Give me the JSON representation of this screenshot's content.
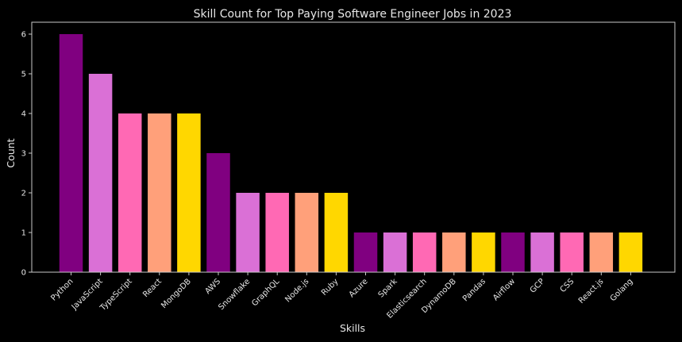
{
  "chart_data": {
    "type": "bar",
    "title": "Skill Count for Top Paying Software Engineer Jobs in 2023",
    "xlabel": "Skills",
    "ylabel": "Count",
    "ylim": [
      0,
      6.3
    ],
    "yticks": [
      0,
      1,
      2,
      3,
      4,
      5,
      6
    ],
    "grid": false,
    "legend": "none",
    "background": "#000000",
    "palette": [
      "#800080",
      "#DA70D6",
      "#FF69B4",
      "#FFA07A",
      "#FFD700"
    ],
    "categories": [
      "Python",
      "JavaScript",
      "TypeScript",
      "React",
      "MongoDB",
      "AWS",
      "Snowflake",
      "GraphQL",
      "Node.js",
      "Ruby",
      "Azure",
      "Spark",
      "Elasticsearch",
      "DynamoDB",
      "Pandas",
      "Airflow",
      "GCP",
      "CSS",
      "React.js",
      "Golang"
    ],
    "values": [
      6,
      5,
      4,
      4,
      4,
      3,
      2,
      2,
      2,
      2,
      1,
      1,
      1,
      1,
      1,
      1,
      1,
      1,
      1,
      1
    ]
  }
}
